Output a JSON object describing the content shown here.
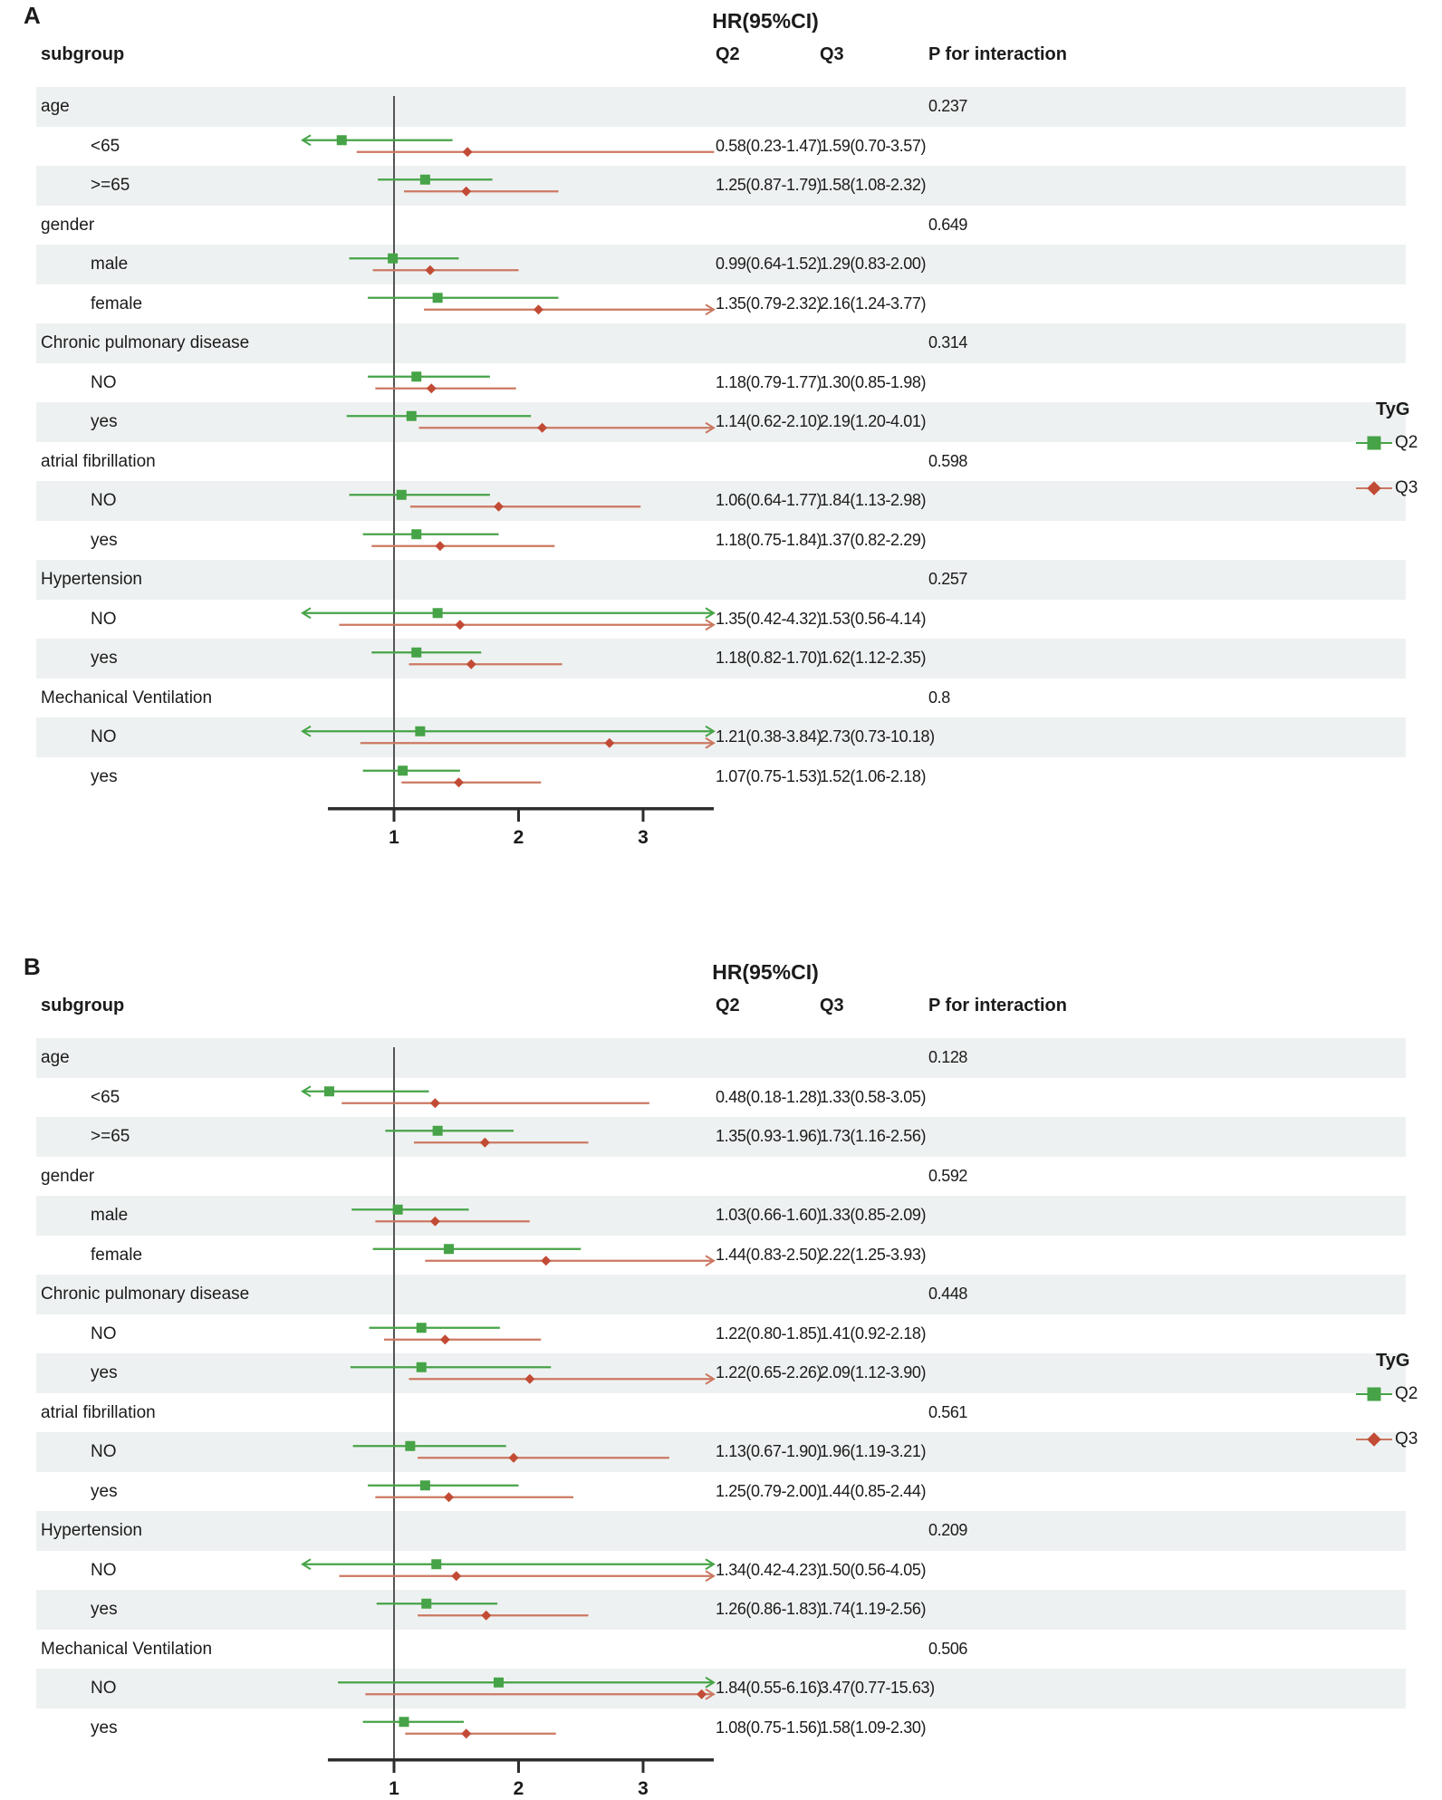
{
  "figure": {
    "legend": {
      "title": "TyG",
      "items": [
        {
          "label": "Q2",
          "marker": "square-icon",
          "color": "#46a347"
        },
        {
          "label": "Q3",
          "marker": "diamond-icon",
          "color": "#c24b35"
        }
      ]
    },
    "colors": {
      "q2": "#46a347",
      "q3": "#c24b35",
      "q3_line": "#cb7862",
      "stripe": "#eef1f1",
      "axis": "#2d2d2d",
      "ref_line": "#555555",
      "text": "#1b1b1b"
    }
  },
  "chart_data": [
    {
      "type": "forest",
      "panel_label": "A",
      "title": "HR(95%CI)",
      "columns": {
        "subgroup": "subgroup",
        "q2": "Q2",
        "q3": "Q3",
        "p": "P for interaction"
      },
      "series_labels": [
        "Q2",
        "Q3"
      ],
      "axis": {
        "ticks": [
          1,
          2,
          3
        ],
        "reference_line": 1,
        "xlim": [
          0.45,
          3.6
        ]
      },
      "rows": [
        {
          "kind": "group",
          "label": "age",
          "p": "0.237"
        },
        {
          "kind": "data",
          "label": "<65",
          "q2": {
            "text": "0.58(0.23-1.47)",
            "est": 0.58,
            "lo": 0.23,
            "hi": 1.47
          },
          "q3": {
            "text": "1.59(0.70-3.57)",
            "est": 1.59,
            "lo": 0.7,
            "hi": 3.57
          }
        },
        {
          "kind": "data",
          "label": ">=65",
          "q2": {
            "text": "1.25(0.87-1.79)",
            "est": 1.25,
            "lo": 0.87,
            "hi": 1.79
          },
          "q3": {
            "text": "1.58(1.08-2.32)",
            "est": 1.58,
            "lo": 1.08,
            "hi": 2.32
          }
        },
        {
          "kind": "group",
          "label": "gender",
          "p": "0.649"
        },
        {
          "kind": "data",
          "label": "male",
          "q2": {
            "text": "0.99(0.64-1.52)",
            "est": 0.99,
            "lo": 0.64,
            "hi": 1.52
          },
          "q3": {
            "text": "1.29(0.83-2.00)",
            "est": 1.29,
            "lo": 0.83,
            "hi": 2.0
          }
        },
        {
          "kind": "data",
          "label": "female",
          "q2": {
            "text": "1.35(0.79-2.32)",
            "est": 1.35,
            "lo": 0.79,
            "hi": 2.32
          },
          "q3": {
            "text": "2.16(1.24-3.77)",
            "est": 2.16,
            "lo": 1.24,
            "hi": 3.77
          }
        },
        {
          "kind": "group",
          "label": "Chronic pulmonary disease",
          "p": "0.314"
        },
        {
          "kind": "data",
          "label": "NO",
          "q2": {
            "text": "1.18(0.79-1.77)",
            "est": 1.18,
            "lo": 0.79,
            "hi": 1.77
          },
          "q3": {
            "text": "1.30(0.85-1.98)",
            "est": 1.3,
            "lo": 0.85,
            "hi": 1.98
          }
        },
        {
          "kind": "data",
          "label": "yes",
          "q2": {
            "text": "1.14(0.62-2.10)",
            "est": 1.14,
            "lo": 0.62,
            "hi": 2.1
          },
          "q3": {
            "text": "2.19(1.20-4.01)",
            "est": 2.19,
            "lo": 1.2,
            "hi": 4.01
          }
        },
        {
          "kind": "group",
          "label": "atrial fibrillation",
          "p": "0.598"
        },
        {
          "kind": "data",
          "label": "NO",
          "q2": {
            "text": "1.06(0.64-1.77)",
            "est": 1.06,
            "lo": 0.64,
            "hi": 1.77
          },
          "q3": {
            "text": "1.84(1.13-2.98)",
            "est": 1.84,
            "lo": 1.13,
            "hi": 2.98
          }
        },
        {
          "kind": "data",
          "label": "yes",
          "q2": {
            "text": "1.18(0.75-1.84)",
            "est": 1.18,
            "lo": 0.75,
            "hi": 1.84
          },
          "q3": {
            "text": "1.37(0.82-2.29)",
            "est": 1.37,
            "lo": 0.82,
            "hi": 2.29
          }
        },
        {
          "kind": "group",
          "label": "Hypertension",
          "p": "0.257"
        },
        {
          "kind": "data",
          "label": "NO",
          "q2": {
            "text": "1.35(0.42-4.32)",
            "est": 1.35,
            "lo": 0.42,
            "hi": 4.32
          },
          "q3": {
            "text": "1.53(0.56-4.14)",
            "est": 1.53,
            "lo": 0.56,
            "hi": 4.14
          }
        },
        {
          "kind": "data",
          "label": "yes",
          "q2": {
            "text": "1.18(0.82-1.70)",
            "est": 1.18,
            "lo": 0.82,
            "hi": 1.7
          },
          "q3": {
            "text": "1.62(1.12-2.35)",
            "est": 1.62,
            "lo": 1.12,
            "hi": 2.35
          }
        },
        {
          "kind": "group",
          "label": "Mechanical Ventilation",
          "p": "0.8"
        },
        {
          "kind": "data",
          "label": "NO",
          "q2": {
            "text": "1.21(0.38-3.84)",
            "est": 1.21,
            "lo": 0.38,
            "hi": 3.84
          },
          "q3": {
            "text": "2.73(0.73-10.18)",
            "est": 2.73,
            "lo": 0.73,
            "hi": 10.18
          }
        },
        {
          "kind": "data",
          "label": "yes",
          "q2": {
            "text": "1.07(0.75-1.53)",
            "est": 1.07,
            "lo": 0.75,
            "hi": 1.53
          },
          "q3": {
            "text": "1.52(1.06-2.18)",
            "est": 1.52,
            "lo": 1.06,
            "hi": 2.18
          }
        }
      ]
    },
    {
      "type": "forest",
      "panel_label": "B",
      "title": "HR(95%CI)",
      "columns": {
        "subgroup": "subgroup",
        "q2": "Q2",
        "q3": "Q3",
        "p": "P for interaction"
      },
      "series_labels": [
        "Q2",
        "Q3"
      ],
      "axis": {
        "ticks": [
          1,
          2,
          3
        ],
        "reference_line": 1,
        "xlim": [
          0.45,
          3.6
        ]
      },
      "rows": [
        {
          "kind": "group",
          "label": "age",
          "p": "0.128"
        },
        {
          "kind": "data",
          "label": "<65",
          "q2": {
            "text": "0.48(0.18-1.28)",
            "est": 0.48,
            "lo": 0.18,
            "hi": 1.28
          },
          "q3": {
            "text": "1.33(0.58-3.05)",
            "est": 1.33,
            "lo": 0.58,
            "hi": 3.05
          }
        },
        {
          "kind": "data",
          "label": ">=65",
          "q2": {
            "text": "1.35(0.93-1.96)",
            "est": 1.35,
            "lo": 0.93,
            "hi": 1.96
          },
          "q3": {
            "text": "1.73(1.16-2.56)",
            "est": 1.73,
            "lo": 1.16,
            "hi": 2.56
          }
        },
        {
          "kind": "group",
          "label": "gender",
          "p": "0.592"
        },
        {
          "kind": "data",
          "label": "male",
          "q2": {
            "text": "1.03(0.66-1.60)",
            "est": 1.03,
            "lo": 0.66,
            "hi": 1.6
          },
          "q3": {
            "text": "1.33(0.85-2.09)",
            "est": 1.33,
            "lo": 0.85,
            "hi": 2.09
          }
        },
        {
          "kind": "data",
          "label": "female",
          "q2": {
            "text": "1.44(0.83-2.50)",
            "est": 1.44,
            "lo": 0.83,
            "hi": 2.5
          },
          "q3": {
            "text": "2.22(1.25-3.93)",
            "est": 2.22,
            "lo": 1.25,
            "hi": 3.93
          }
        },
        {
          "kind": "group",
          "label": "Chronic pulmonary disease",
          "p": "0.448"
        },
        {
          "kind": "data",
          "label": "NO",
          "q2": {
            "text": "1.22(0.80-1.85)",
            "est": 1.22,
            "lo": 0.8,
            "hi": 1.85
          },
          "q3": {
            "text": "1.41(0.92-2.18)",
            "est": 1.41,
            "lo": 0.92,
            "hi": 2.18
          }
        },
        {
          "kind": "data",
          "label": "yes",
          "q2": {
            "text": "1.22(0.65-2.26)",
            "est": 1.22,
            "lo": 0.65,
            "hi": 2.26
          },
          "q3": {
            "text": "2.09(1.12-3.90)",
            "est": 2.09,
            "lo": 1.12,
            "hi": 3.9
          }
        },
        {
          "kind": "group",
          "label": "atrial fibrillation",
          "p": "0.561"
        },
        {
          "kind": "data",
          "label": "NO",
          "q2": {
            "text": "1.13(0.67-1.90)",
            "est": 1.13,
            "lo": 0.67,
            "hi": 1.9
          },
          "q3": {
            "text": "1.96(1.19-3.21)",
            "est": 1.96,
            "lo": 1.19,
            "hi": 3.21
          }
        },
        {
          "kind": "data",
          "label": "yes",
          "q2": {
            "text": "1.25(0.79-2.00)",
            "est": 1.25,
            "lo": 0.79,
            "hi": 2.0
          },
          "q3": {
            "text": "1.44(0.85-2.44)",
            "est": 1.44,
            "lo": 0.85,
            "hi": 2.44
          }
        },
        {
          "kind": "group",
          "label": "Hypertension",
          "p": "0.209"
        },
        {
          "kind": "data",
          "label": "NO",
          "q2": {
            "text": "1.34(0.42-4.23)",
            "est": 1.34,
            "lo": 0.42,
            "hi": 4.23
          },
          "q3": {
            "text": "1.50(0.56-4.05)",
            "est": 1.5,
            "lo": 0.56,
            "hi": 4.05
          }
        },
        {
          "kind": "data",
          "label": "yes",
          "q2": {
            "text": "1.26(0.86-1.83)",
            "est": 1.26,
            "lo": 0.86,
            "hi": 1.83
          },
          "q3": {
            "text": "1.74(1.19-2.56)",
            "est": 1.74,
            "lo": 1.19,
            "hi": 2.56
          }
        },
        {
          "kind": "group",
          "label": "Mechanical Ventilation",
          "p": "0.506"
        },
        {
          "kind": "data",
          "label": "NO",
          "q2": {
            "text": "1.84(0.55-6.16)",
            "est": 1.84,
            "lo": 0.55,
            "hi": 6.16
          },
          "q3": {
            "text": "3.47(0.77-15.63)",
            "est": 3.47,
            "lo": 0.77,
            "hi": 15.63
          }
        },
        {
          "kind": "data",
          "label": "yes",
          "q2": {
            "text": "1.08(0.75-1.56)",
            "est": 1.08,
            "lo": 0.75,
            "hi": 1.56
          },
          "q3": {
            "text": "1.58(1.09-2.30)",
            "est": 1.58,
            "lo": 1.09,
            "hi": 2.3
          }
        }
      ]
    }
  ]
}
